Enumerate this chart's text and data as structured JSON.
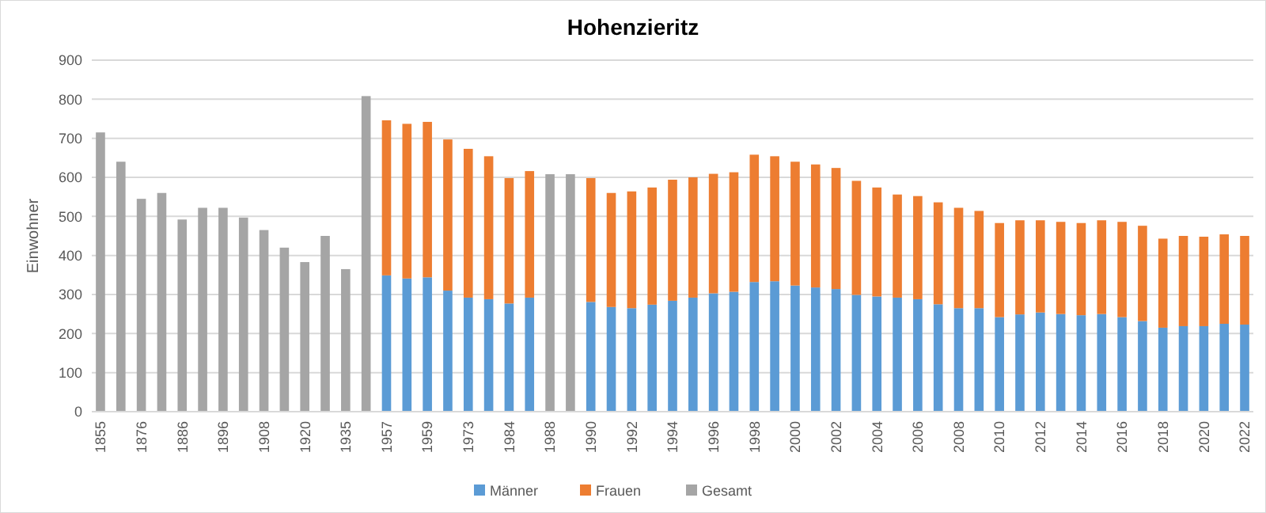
{
  "chart_data": {
    "type": "bar",
    "title": "Hohenzieritz",
    "ylabel": "Einwohner",
    "stacked": true,
    "grid": "y",
    "legend": "bottom",
    "ylim": [
      0,
      900
    ],
    "yticks": [
      0,
      100,
      200,
      300,
      400,
      500,
      600,
      700,
      800,
      900
    ],
    "categories": [
      "1855",
      null,
      "1876",
      null,
      "1886",
      null,
      "1896",
      null,
      "1908",
      null,
      "1920",
      null,
      "1935",
      null,
      "1957",
      null,
      "1959",
      null,
      "1973",
      null,
      "1984",
      null,
      "1988",
      null,
      "1990",
      null,
      "1992",
      null,
      "1994",
      null,
      "1996",
      null,
      "1998",
      null,
      "2000",
      null,
      "2002",
      null,
      "2004",
      null,
      "2006",
      null,
      "2008",
      null,
      "2010",
      null,
      "2012",
      null,
      "2014",
      null,
      "2016",
      null,
      "2018",
      null,
      "2020",
      null,
      "2022"
    ],
    "series": [
      {
        "name": "Männer",
        "color": "#5b9bd5",
        "values": [
          null,
          null,
          null,
          null,
          null,
          null,
          null,
          null,
          null,
          null,
          null,
          null,
          null,
          null,
          349,
          341,
          344,
          310,
          292,
          288,
          277,
          292,
          null,
          null,
          281,
          268,
          265,
          274,
          284,
          292,
          303,
          307,
          332,
          334,
          323,
          318,
          314,
          299,
          295,
          292,
          288,
          275,
          265,
          265,
          242,
          249,
          254,
          250,
          247,
          250,
          242,
          232,
          215,
          219,
          219,
          225,
          223
        ]
      },
      {
        "name": "Frauen",
        "color": "#ed7d31",
        "values": [
          null,
          null,
          null,
          null,
          null,
          null,
          null,
          null,
          null,
          null,
          null,
          null,
          null,
          null,
          397,
          396,
          398,
          387,
          381,
          366,
          321,
          324,
          null,
          null,
          317,
          292,
          299,
          300,
          310,
          308,
          306,
          306,
          326,
          320,
          317,
          315,
          310,
          292,
          279,
          264,
          264,
          261,
          257,
          249,
          241,
          241,
          236,
          236,
          236,
          240,
          244,
          244,
          228,
          231,
          229,
          229,
          227
        ]
      },
      {
        "name": "Gesamt",
        "color": "#a5a5a5",
        "values": [
          715,
          640,
          545,
          560,
          492,
          522,
          522,
          497,
          465,
          420,
          383,
          450,
          365,
          808,
          null,
          null,
          null,
          null,
          null,
          null,
          null,
          null,
          608,
          608,
          null,
          null,
          null,
          null,
          null,
          null,
          null,
          null,
          null,
          null,
          null,
          null,
          null,
          null,
          null,
          null,
          null,
          null,
          null,
          null,
          null,
          null,
          null,
          null,
          null,
          null,
          null,
          null,
          null,
          null,
          null,
          null,
          null
        ]
      }
    ]
  }
}
